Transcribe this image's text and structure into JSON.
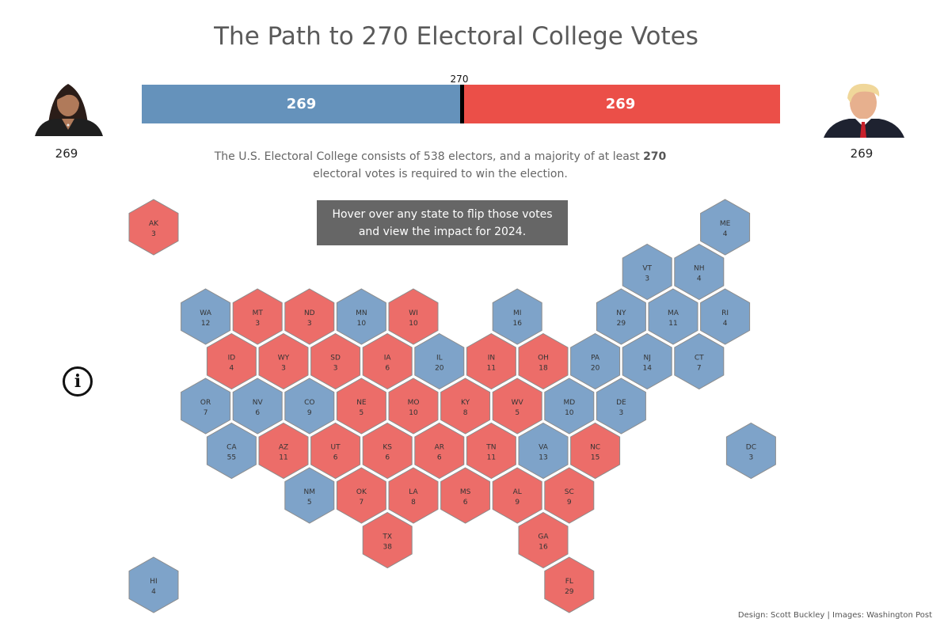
{
  "title": "The Path to 270 Electoral College Votes",
  "threshold_label": "270",
  "candidates": {
    "left": {
      "total": "269",
      "color": "#6592bb",
      "bar_label": "269",
      "votes": 269,
      "portrait": "harris-portrait"
    },
    "right": {
      "total": "269",
      "color": "#eb4f48",
      "bar_label": "269",
      "votes": 269,
      "portrait": "trump-portrait"
    }
  },
  "subtitle": {
    "part1": "The U.S. Electoral College consists of 538 electors, and a majority of at least ",
    "bold": "270",
    "part2": " electoral votes is required to win the election."
  },
  "hover_note": "Hover over any state to flip those votes and view the impact for 2024.",
  "credit": "Design: Scott Buckley | Images: Washington Post",
  "colors": {
    "blue": "#7ea3c9",
    "red": "#ec6d69",
    "hex_stroke": "#8c8c8c"
  },
  "chart_data": {
    "type": "hex-tile-map",
    "title": "The Path to 270 Electoral College Votes",
    "total_electors": 538,
    "majority": 270,
    "totals": {
      "blue": 269,
      "red": 269
    },
    "states": [
      {
        "abbr": "AK",
        "votes": 3,
        "party": "red",
        "col": 0,
        "row": 0
      },
      {
        "abbr": "ME",
        "votes": 4,
        "party": "blue",
        "col": 11,
        "row": 0
      },
      {
        "abbr": "VT",
        "votes": 3,
        "party": "blue",
        "col": 9,
        "row": 1
      },
      {
        "abbr": "NH",
        "votes": 4,
        "party": "blue",
        "col": 10,
        "row": 1
      },
      {
        "abbr": "WA",
        "votes": 12,
        "party": "blue",
        "col": 1,
        "row": 2
      },
      {
        "abbr": "MT",
        "votes": 3,
        "party": "red",
        "col": 2,
        "row": 2
      },
      {
        "abbr": "ND",
        "votes": 3,
        "party": "red",
        "col": 3,
        "row": 2
      },
      {
        "abbr": "MN",
        "votes": 10,
        "party": "blue",
        "col": 4,
        "row": 2
      },
      {
        "abbr": "WI",
        "votes": 10,
        "party": "red",
        "col": 5,
        "row": 2
      },
      {
        "abbr": "MI",
        "votes": 16,
        "party": "blue",
        "col": 7,
        "row": 2
      },
      {
        "abbr": "NY",
        "votes": 29,
        "party": "blue",
        "col": 9,
        "row": 2
      },
      {
        "abbr": "MA",
        "votes": 11,
        "party": "blue",
        "col": 10,
        "row": 2
      },
      {
        "abbr": "RI",
        "votes": 4,
        "party": "blue",
        "col": 11,
        "row": 2
      },
      {
        "abbr": "ID",
        "votes": 4,
        "party": "red",
        "col": 1,
        "row": 3
      },
      {
        "abbr": "WY",
        "votes": 3,
        "party": "red",
        "col": 2,
        "row": 3
      },
      {
        "abbr": "SD",
        "votes": 3,
        "party": "red",
        "col": 3,
        "row": 3
      },
      {
        "abbr": "IA",
        "votes": 6,
        "party": "red",
        "col": 4,
        "row": 3
      },
      {
        "abbr": "IL",
        "votes": 20,
        "party": "blue",
        "col": 5,
        "row": 3
      },
      {
        "abbr": "IN",
        "votes": 11,
        "party": "red",
        "col": 6,
        "row": 3
      },
      {
        "abbr": "OH",
        "votes": 18,
        "party": "red",
        "col": 7,
        "row": 3
      },
      {
        "abbr": "PA",
        "votes": 20,
        "party": "blue",
        "col": 8,
        "row": 3
      },
      {
        "abbr": "NJ",
        "votes": 14,
        "party": "blue",
        "col": 9,
        "row": 3
      },
      {
        "abbr": "CT",
        "votes": 7,
        "party": "blue",
        "col": 10,
        "row": 3
      },
      {
        "abbr": "OR",
        "votes": 7,
        "party": "blue",
        "col": 1,
        "row": 4
      },
      {
        "abbr": "NV",
        "votes": 6,
        "party": "blue",
        "col": 2,
        "row": 4
      },
      {
        "abbr": "CO",
        "votes": 9,
        "party": "blue",
        "col": 3,
        "row": 4
      },
      {
        "abbr": "NE",
        "votes": 5,
        "party": "red",
        "col": 4,
        "row": 4
      },
      {
        "abbr": "MO",
        "votes": 10,
        "party": "red",
        "col": 5,
        "row": 4
      },
      {
        "abbr": "KY",
        "votes": 8,
        "party": "red",
        "col": 6,
        "row": 4
      },
      {
        "abbr": "WV",
        "votes": 5,
        "party": "red",
        "col": 7,
        "row": 4
      },
      {
        "abbr": "MD",
        "votes": 10,
        "party": "blue",
        "col": 8,
        "row": 4
      },
      {
        "abbr": "DE",
        "votes": 3,
        "party": "blue",
        "col": 9,
        "row": 4
      },
      {
        "abbr": "CA",
        "votes": 55,
        "party": "blue",
        "col": 1,
        "row": 5
      },
      {
        "abbr": "AZ",
        "votes": 11,
        "party": "red",
        "col": 2,
        "row": 5
      },
      {
        "abbr": "UT",
        "votes": 6,
        "party": "red",
        "col": 3,
        "row": 5
      },
      {
        "abbr": "KS",
        "votes": 6,
        "party": "red",
        "col": 4,
        "row": 5
      },
      {
        "abbr": "AR",
        "votes": 6,
        "party": "red",
        "col": 5,
        "row": 5
      },
      {
        "abbr": "TN",
        "votes": 11,
        "party": "red",
        "col": 6,
        "row": 5
      },
      {
        "abbr": "VA",
        "votes": 13,
        "party": "blue",
        "col": 7,
        "row": 5
      },
      {
        "abbr": "NC",
        "votes": 15,
        "party": "red",
        "col": 8,
        "row": 5
      },
      {
        "abbr": "DC",
        "votes": 3,
        "party": "blue",
        "col": 11,
        "row": 5
      },
      {
        "abbr": "NM",
        "votes": 5,
        "party": "blue",
        "col": 3,
        "row": 6
      },
      {
        "abbr": "OK",
        "votes": 7,
        "party": "red",
        "col": 4,
        "row": 6
      },
      {
        "abbr": "LA",
        "votes": 8,
        "party": "red",
        "col": 5,
        "row": 6
      },
      {
        "abbr": "MS",
        "votes": 6,
        "party": "red",
        "col": 6,
        "row": 6
      },
      {
        "abbr": "AL",
        "votes": 9,
        "party": "red",
        "col": 7,
        "row": 6
      },
      {
        "abbr": "SC",
        "votes": 9,
        "party": "red",
        "col": 8,
        "row": 6
      },
      {
        "abbr": "TX",
        "votes": 38,
        "party": "red",
        "col": 4,
        "row": 7
      },
      {
        "abbr": "GA",
        "votes": 16,
        "party": "red",
        "col": 7,
        "row": 7
      },
      {
        "abbr": "HI",
        "votes": 4,
        "party": "blue",
        "col": 0,
        "row": 8
      },
      {
        "abbr": "FL",
        "votes": 29,
        "party": "red",
        "col": 8,
        "row": 8
      }
    ]
  }
}
